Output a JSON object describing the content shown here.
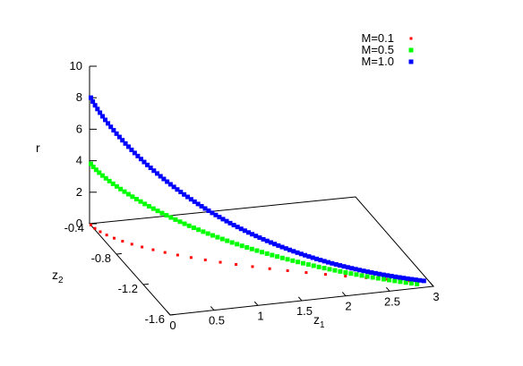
{
  "chart_data": {
    "type": "scatter",
    "projection": "3d",
    "title": "",
    "axes": {
      "x": {
        "label": "z",
        "label_sub": "1",
        "range": [
          0,
          3
        ],
        "ticks": [
          "0",
          "0.5",
          "1",
          "1.5",
          "2",
          "2.5",
          "3"
        ]
      },
      "y": {
        "label": "z",
        "label_sub": "2",
        "range": [
          -1.6,
          -0.4
        ],
        "ticks": [
          "-1.6",
          "-1.2",
          "-0.8",
          "-0.4"
        ]
      },
      "z": {
        "label": "r",
        "range": [
          0,
          10
        ],
        "ticks": [
          "0",
          "2",
          "4",
          "6",
          "8",
          "10"
        ]
      }
    },
    "legend_position": "top-right",
    "grid": false,
    "series": [
      {
        "name": "M=0.1",
        "color": "#ff0000",
        "marker": "small-square"
      },
      {
        "name": "M=0.5",
        "color": "#00ff00",
        "marker": "square"
      },
      {
        "name": "M=1.0",
        "color": "#0000ff",
        "marker": "square"
      }
    ]
  }
}
